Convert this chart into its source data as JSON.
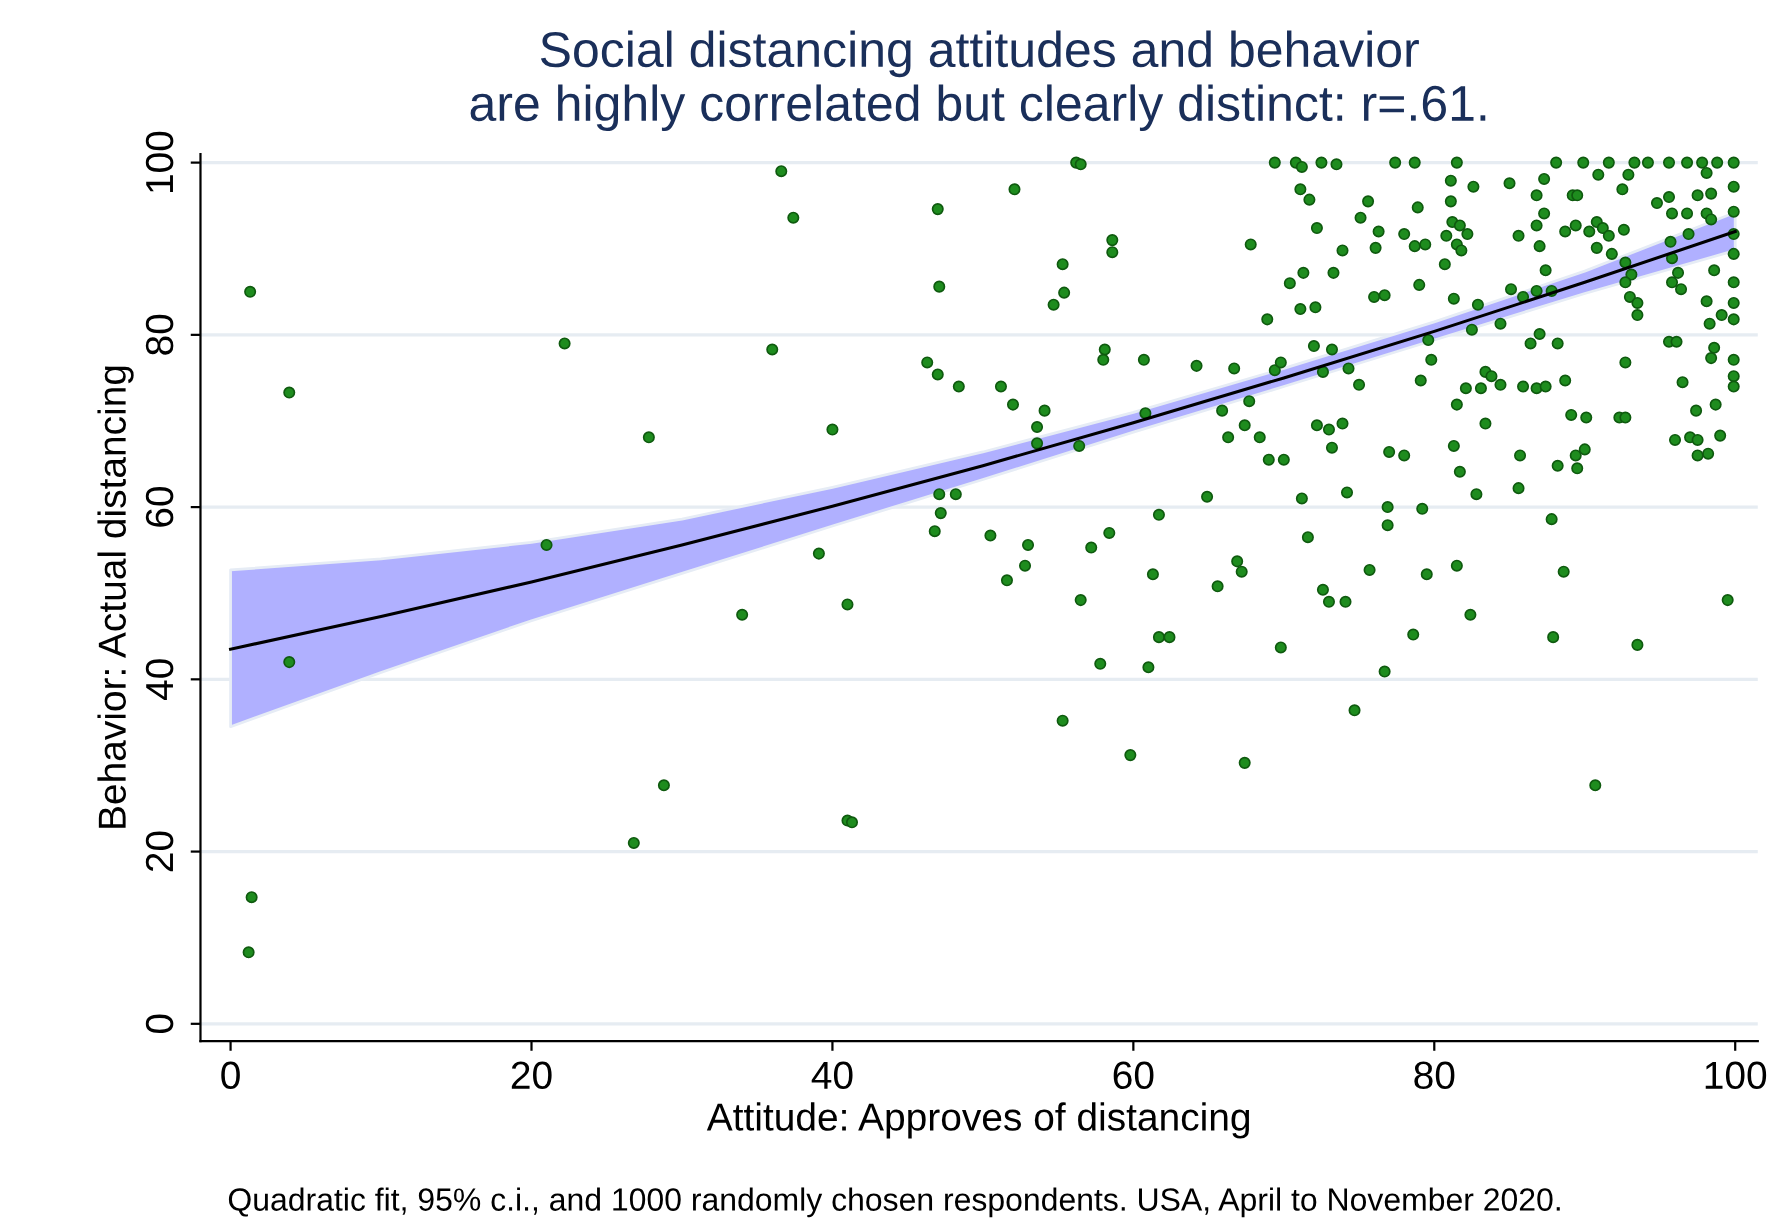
{
  "chart_data": {
    "type": "scatter",
    "title": "Social distancing attitudes and behavior\nare highly correlated but clearly distinct: r=.61.",
    "xlabel": "Attitude: Approves of distancing",
    "ylabel": "Behavior: Actual distancing",
    "annotations": [
      "Quadratic fit, 95% c.i., and 1000 randomly chosen respondents. USA, April to November 2020."
    ],
    "xlim": [
      -2,
      101.5
    ],
    "ylim": [
      -2,
      101
    ],
    "xticks": [
      0,
      20,
      40,
      60,
      80,
      100
    ],
    "yticks": [
      0,
      20,
      40,
      60,
      80,
      100
    ],
    "grid": "y",
    "legend": false,
    "marker": "circle",
    "series": [
      {
        "color": "#1e8c1e",
        "x": [
          1.3,
          3.9,
          3.9,
          1.4,
          1.2,
          21,
          22.2,
          27.8,
          28.8,
          26.8,
          36.6,
          37.4,
          36,
          40,
          39.1,
          41,
          41,
          41.3,
          34,
          47,
          47.1,
          47.1,
          46.8,
          46.3,
          47,
          48.4,
          48.2,
          47.2,
          56.2,
          56.5,
          52.1,
          58.6,
          58.6,
          55.3,
          55.4,
          54.7,
          51.2,
          52,
          54.1,
          53.6,
          53.6,
          56.4,
          58.1,
          58,
          60.7,
          60.8,
          64.2,
          66.7,
          65.9,
          66.3,
          67.4,
          67.7,
          68.4,
          69,
          70,
          69.4,
          69.8,
          67.8,
          68.9,
          69.4,
          70.8,
          71.2,
          71.1,
          71.7,
          72.5,
          73.5,
          72.2,
          73.9,
          73.3,
          71.3,
          70.4,
          71.1,
          72.1,
          72,
          73.2,
          72.6,
          74.3,
          75,
          72.2,
          73,
          73.9,
          73.2,
          71.2,
          74.2,
          71.6,
          72.6,
          76,
          76.7,
          75.6,
          75.1,
          76.3,
          76.1,
          77.4,
          78.7,
          81.5,
          78.9,
          78,
          78.7,
          79.4,
          80.7,
          81.1,
          81.1,
          81.2,
          81.7,
          82.2,
          80.8,
          81.5,
          81.8,
          79,
          81.3,
          82.6,
          85,
          85.6,
          82.9,
          82.5,
          84.4,
          85.1,
          85.9,
          86.8,
          87.8,
          87.4,
          87,
          86.8,
          87.3,
          86.8,
          87.3,
          88.1,
          89.9,
          91.6,
          90.9,
          89.2,
          89.5,
          88.7,
          89.4,
          90.3,
          90.8,
          91.2,
          91.6,
          90.8,
          91.8,
          92.6,
          92.5,
          92.9,
          93.3,
          94.2,
          92.7,
          93.1,
          92.7,
          93,
          93.5,
          93.5,
          92.7,
          94.8,
          95.6,
          95.6,
          96.8,
          97.8,
          98.8,
          99.9,
          99.9,
          99.9,
          99.9,
          99.9,
          99.9,
          99.9,
          99.9,
          99.9,
          99.9,
          99.9,
          95.8,
          95.7,
          95.8,
          96.2,
          95.8,
          96.4,
          96.8,
          96.9,
          97.5,
          98.1,
          98.1,
          98.4,
          98.4,
          98.6,
          98.1,
          98.3,
          99.1,
          95.6,
          96.1,
          96.5,
          98.6,
          98.4,
          97.4,
          98.7,
          96,
          97,
          97.5,
          98.2,
          97.5,
          99,
          92.3,
          92.7,
          86.4,
          87,
          88.2,
          88.7,
          85.9,
          86.8,
          87.4,
          83.4,
          83.8,
          84.4,
          83.1,
          82.1,
          81.5,
          79.1,
          79.8,
          79.6,
          83.4,
          89.1,
          90.1,
          81.3,
          85.7,
          89.4,
          90,
          88.2,
          89.5,
          77,
          78,
          81.7,
          85.6,
          82.8,
          76.9,
          76.9,
          79.2,
          87.8,
          75.7,
          79.5,
          81.5,
          88.6,
          61.7,
          64.9,
          50.5,
          53,
          52.8,
          51.6,
          57.2,
          58.4,
          61.3,
          65.6,
          66.9,
          67.2,
          56.5,
          57.8,
          61,
          61.7,
          62.4,
          55.3,
          59.8,
          67.4,
          69.8,
          73,
          74.1,
          74.7,
          76.7,
          78.6,
          82.4,
          87.9,
          93.5,
          90.7,
          99.5
        ],
        "values": [
          85,
          73.3,
          42,
          14.7,
          8.3,
          55.6,
          79,
          68.1,
          27.7,
          21,
          99,
          93.6,
          78.3,
          69,
          54.6,
          48.7,
          23.6,
          23.4,
          47.5,
          94.6,
          85.6,
          61.5,
          57.2,
          76.8,
          75.4,
          74,
          61.5,
          59.3,
          100,
          99.8,
          96.9,
          91,
          89.6,
          88.2,
          84.9,
          83.5,
          74,
          71.9,
          71.2,
          69.3,
          67.4,
          67.1,
          78.3,
          77.1,
          77.1,
          70.9,
          76.4,
          76.1,
          71.2,
          68.1,
          69.5,
          72.3,
          68.1,
          65.5,
          65.5,
          75.9,
          76.8,
          90.5,
          81.8,
          100,
          100,
          99.5,
          96.9,
          95.7,
          100,
          99.8,
          92.4,
          89.8,
          87.2,
          87.2,
          86,
          83,
          83.2,
          78.7,
          78.3,
          75.7,
          76.1,
          74.2,
          69.5,
          69,
          69.7,
          66.9,
          61,
          61.7,
          56.5,
          50.4,
          84.4,
          84.6,
          95.5,
          93.6,
          92,
          90.1,
          100,
          100,
          100,
          94.8,
          91.7,
          90.3,
          90.5,
          88.2,
          97.9,
          95.5,
          93.1,
          92.7,
          91.7,
          91.5,
          90.5,
          89.8,
          85.8,
          84.2,
          97.2,
          97.6,
          91.5,
          83.5,
          80.6,
          81.3,
          85.3,
          84.4,
          85.1,
          85.1,
          87.5,
          90.3,
          92.7,
          94.1,
          96.2,
          98.1,
          100,
          100,
          100,
          98.6,
          96.2,
          96.2,
          92,
          92.7,
          92,
          93.1,
          92.4,
          91.5,
          90.1,
          89.4,
          92.2,
          96.9,
          98.6,
          100,
          100,
          88.4,
          87,
          86.1,
          84.4,
          83.7,
          82.3,
          76.8,
          95.3,
          96,
          100,
          100,
          100,
          100,
          100,
          97.2,
          94.3,
          91.7,
          89.4,
          86.1,
          83.7,
          81.8,
          77.1,
          75.2,
          74,
          94.1,
          90.8,
          88.9,
          87.2,
          86.1,
          85.3,
          94.1,
          91.7,
          96.2,
          98.8,
          94.1,
          96.4,
          93.4,
          87.5,
          83.9,
          81.3,
          82.3,
          79.2,
          79.2,
          74.5,
          78.5,
          77.3,
          71.2,
          71.9,
          67.8,
          68.1,
          67.8,
          66.2,
          66,
          68.3,
          70.4,
          70.4,
          79,
          80.1,
          79,
          74.7,
          74,
          73.8,
          74,
          75.7,
          75.2,
          74.2,
          73.8,
          73.8,
          71.9,
          74.7,
          77.1,
          79.4,
          69.7,
          70.7,
          70.4,
          67.1,
          66,
          66,
          66.7,
          64.8,
          64.5,
          66.4,
          66,
          64.1,
          62.2,
          61.5,
          60,
          57.9,
          59.8,
          58.6,
          52.7,
          52.2,
          53.2,
          52.5,
          59.1,
          61.2,
          56.7,
          55.6,
          53.2,
          51.5,
          55.3,
          57,
          52.2,
          50.8,
          53.7,
          52.5,
          49.2,
          41.8,
          41.4,
          44.9,
          44.9,
          35.2,
          31.2,
          30.3,
          43.7,
          49,
          49,
          36.4,
          40.9,
          45.2,
          47.5,
          44.9,
          44,
          27.7,
          49.2
        ]
      },
      {
        "type": "line",
        "color": "#000000",
        "marker": "none",
        "x": [
          0,
          10,
          20,
          30,
          40,
          50,
          60,
          70,
          80,
          90,
          100
        ],
        "values": [
          43.5,
          47.3,
          51.3,
          55.6,
          60.1,
          64.8,
          69.8,
          75.0,
          80.4,
          86.1,
          92.0
        ],
        "lower": [
          34.5,
          40.8,
          46.8,
          52.3,
          57.8,
          63.2,
          68.7,
          74.0,
          79.4,
          84.8,
          89.8
        ],
        "upper": [
          52.7,
          54.0,
          55.9,
          58.6,
          62.3,
          66.4,
          71.0,
          76.1,
          81.5,
          87.4,
          94.2
        ]
      }
    ]
  }
}
